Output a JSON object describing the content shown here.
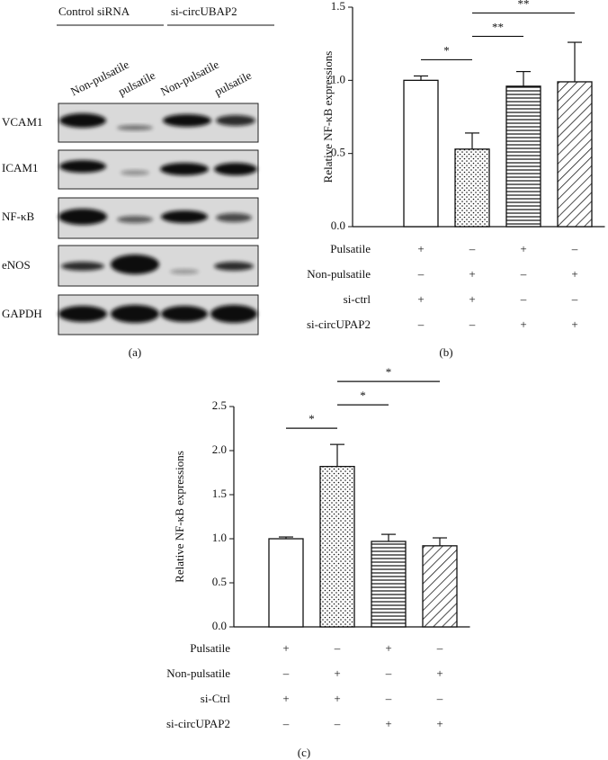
{
  "blot": {
    "groups": [
      "Control siRNA",
      "si-circUBAP2"
    ],
    "lanes": [
      "Non-pulsatile",
      "pulsatile",
      "Non-pulsatile",
      "pulsatile"
    ],
    "rows": [
      "VCAM1",
      "ICAM1",
      "NF-κB",
      "eNOS",
      "GAPDH"
    ],
    "panel_label": "(a)"
  },
  "chart_data": [
    {
      "type": "bar",
      "ylabel": "Relative NF-κB expressions",
      "panel_label": "(b)",
      "values": [
        1.0,
        0.53,
        0.96,
        0.99
      ],
      "errors": [
        0.03,
        0.11,
        0.1,
        0.27
      ],
      "patterns": [
        "none",
        "dots",
        "horizontal",
        "diagonal"
      ],
      "color": "#111111",
      "ylim": [
        0,
        1.5
      ],
      "yticks": [
        {
          "value": 0,
          "label": "0.0"
        },
        0.5,
        {
          "value": 1.0,
          "label": "1.0"
        },
        1.5
      ],
      "annotations": [
        {
          "text": "*",
          "from": 0,
          "to": 1
        },
        {
          "text": "**",
          "from": 1,
          "to": 2
        },
        {
          "text": "**",
          "from": 1,
          "to": 3
        }
      ],
      "conditions": [
        {
          "label": "Pulsatile",
          "values": [
            "+",
            "–",
            "+",
            "–"
          ]
        },
        {
          "label": "Non-pulsatile",
          "values": [
            "–",
            "+",
            "–",
            "+"
          ]
        },
        {
          "label": "si-ctrl",
          "values": [
            "+",
            "+",
            "–",
            "–"
          ]
        },
        {
          "label": "si-circUPAP2",
          "values": [
            "–",
            "–",
            "+",
            "+"
          ]
        }
      ]
    },
    {
      "type": "bar",
      "ylabel": "Relative NF-κB expressions",
      "panel_label": "(c)",
      "values": [
        1.0,
        1.82,
        0.97,
        0.92
      ],
      "errors": [
        0.02,
        0.25,
        0.08,
        0.09
      ],
      "patterns": [
        "none",
        "dots",
        "horizontal",
        "diagonal"
      ],
      "color": "#111111",
      "ylim": [
        0,
        2.5
      ],
      "yticks": [
        {
          "value": 0,
          "label": "0.0"
        },
        0.5,
        {
          "value": 1.0,
          "label": "1.0"
        },
        1.5,
        {
          "value": 2.0,
          "label": "2.0"
        },
        2.5
      ],
      "annotations": [
        {
          "text": "*",
          "from": 0,
          "to": 1
        },
        {
          "text": "*",
          "from": 1,
          "to": 2
        },
        {
          "text": "*",
          "from": 1,
          "to": 3
        }
      ],
      "conditions": [
        {
          "label": "Pulsatile",
          "values": [
            "+",
            "–",
            "+",
            "–"
          ]
        },
        {
          "label": "Non-pulsatile",
          "values": [
            "–",
            "+",
            "–",
            "+"
          ]
        },
        {
          "label": "si-Ctrl",
          "values": [
            "+",
            "+",
            "–",
            "–"
          ]
        },
        {
          "label": "si-circUPAP2",
          "values": [
            "–",
            "–",
            "+",
            "+"
          ]
        }
      ]
    }
  ]
}
